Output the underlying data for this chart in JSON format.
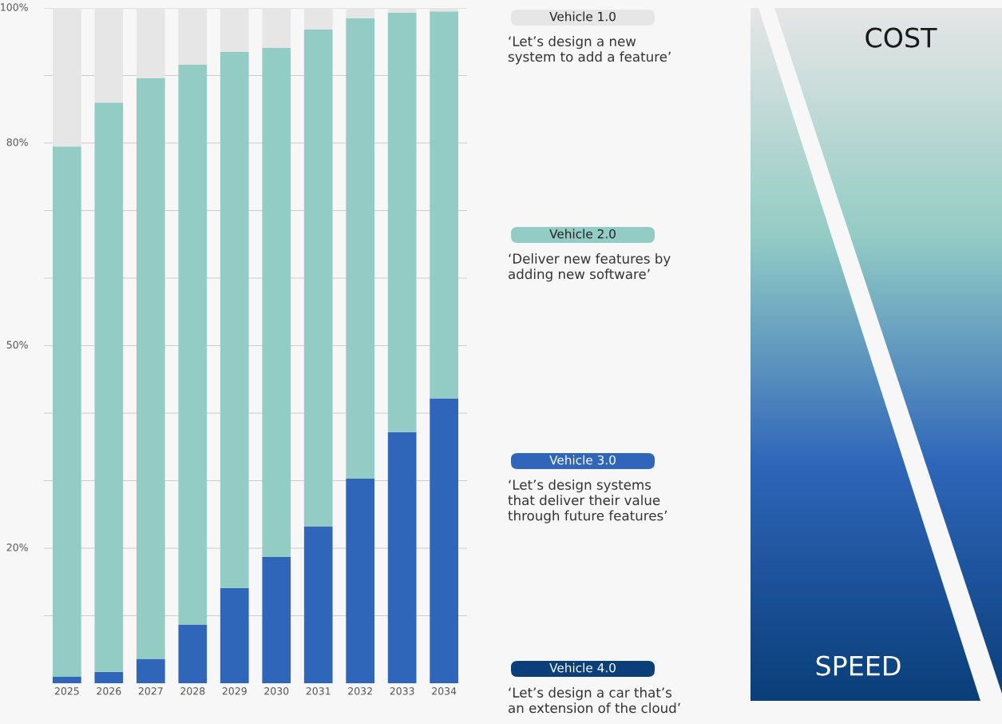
{
  "chart_data": {
    "type": "bar",
    "stacked": true,
    "categories": [
      "2025",
      "2026",
      "2027",
      "2028",
      "2029",
      "2030",
      "2031",
      "2032",
      "2033",
      "2034"
    ],
    "series": [
      {
        "name": "Vehicle 3.0",
        "color": "#2f66b9",
        "values": [
          1,
          1.7,
          3.6,
          8.7,
          14.1,
          18.7,
          23.2,
          30.3,
          37.2,
          42.2
        ]
      },
      {
        "name": "Vehicle 2.0",
        "color": "#93ccc5",
        "values": [
          78.5,
          84.3,
          86,
          82.9,
          79.4,
          75.4,
          73.6,
          68.2,
          62.1,
          57.3
        ]
      },
      {
        "name": "Vehicle 1.0",
        "color": "#e6e6e6",
        "values": [
          20.5,
          14,
          10.4,
          8.4,
          6.5,
          5.9,
          3.2,
          1.5,
          0.7,
          0.5
        ]
      }
    ],
    "ylim": [
      0,
      100
    ],
    "yticks": [
      {
        "value": 10,
        "label": null
      },
      {
        "value": 20,
        "label": "20%"
      },
      {
        "value": 30,
        "label": null
      },
      {
        "value": 40,
        "label": null
      },
      {
        "value": 50,
        "label": "50%"
      },
      {
        "value": 60,
        "label": null
      },
      {
        "value": 70,
        "label": null
      },
      {
        "value": 80,
        "label": "80%"
      },
      {
        "value": 90,
        "label": null
      },
      {
        "value": 100,
        "label": "100%"
      }
    ],
    "grid": "y",
    "legend": "right",
    "annotations": [
      "‘Let’s design a new\nsystem to add a feature’",
      "‘Deliver new features by\nadding new software’",
      "‘Let’s design systems\nthat deliver their value\nthrough future features’",
      "Vehicle 4.0",
      "‘Let’s design a car that’s\nan extension of the cloud’",
      "COST",
      "SPEED"
    ]
  }
}
